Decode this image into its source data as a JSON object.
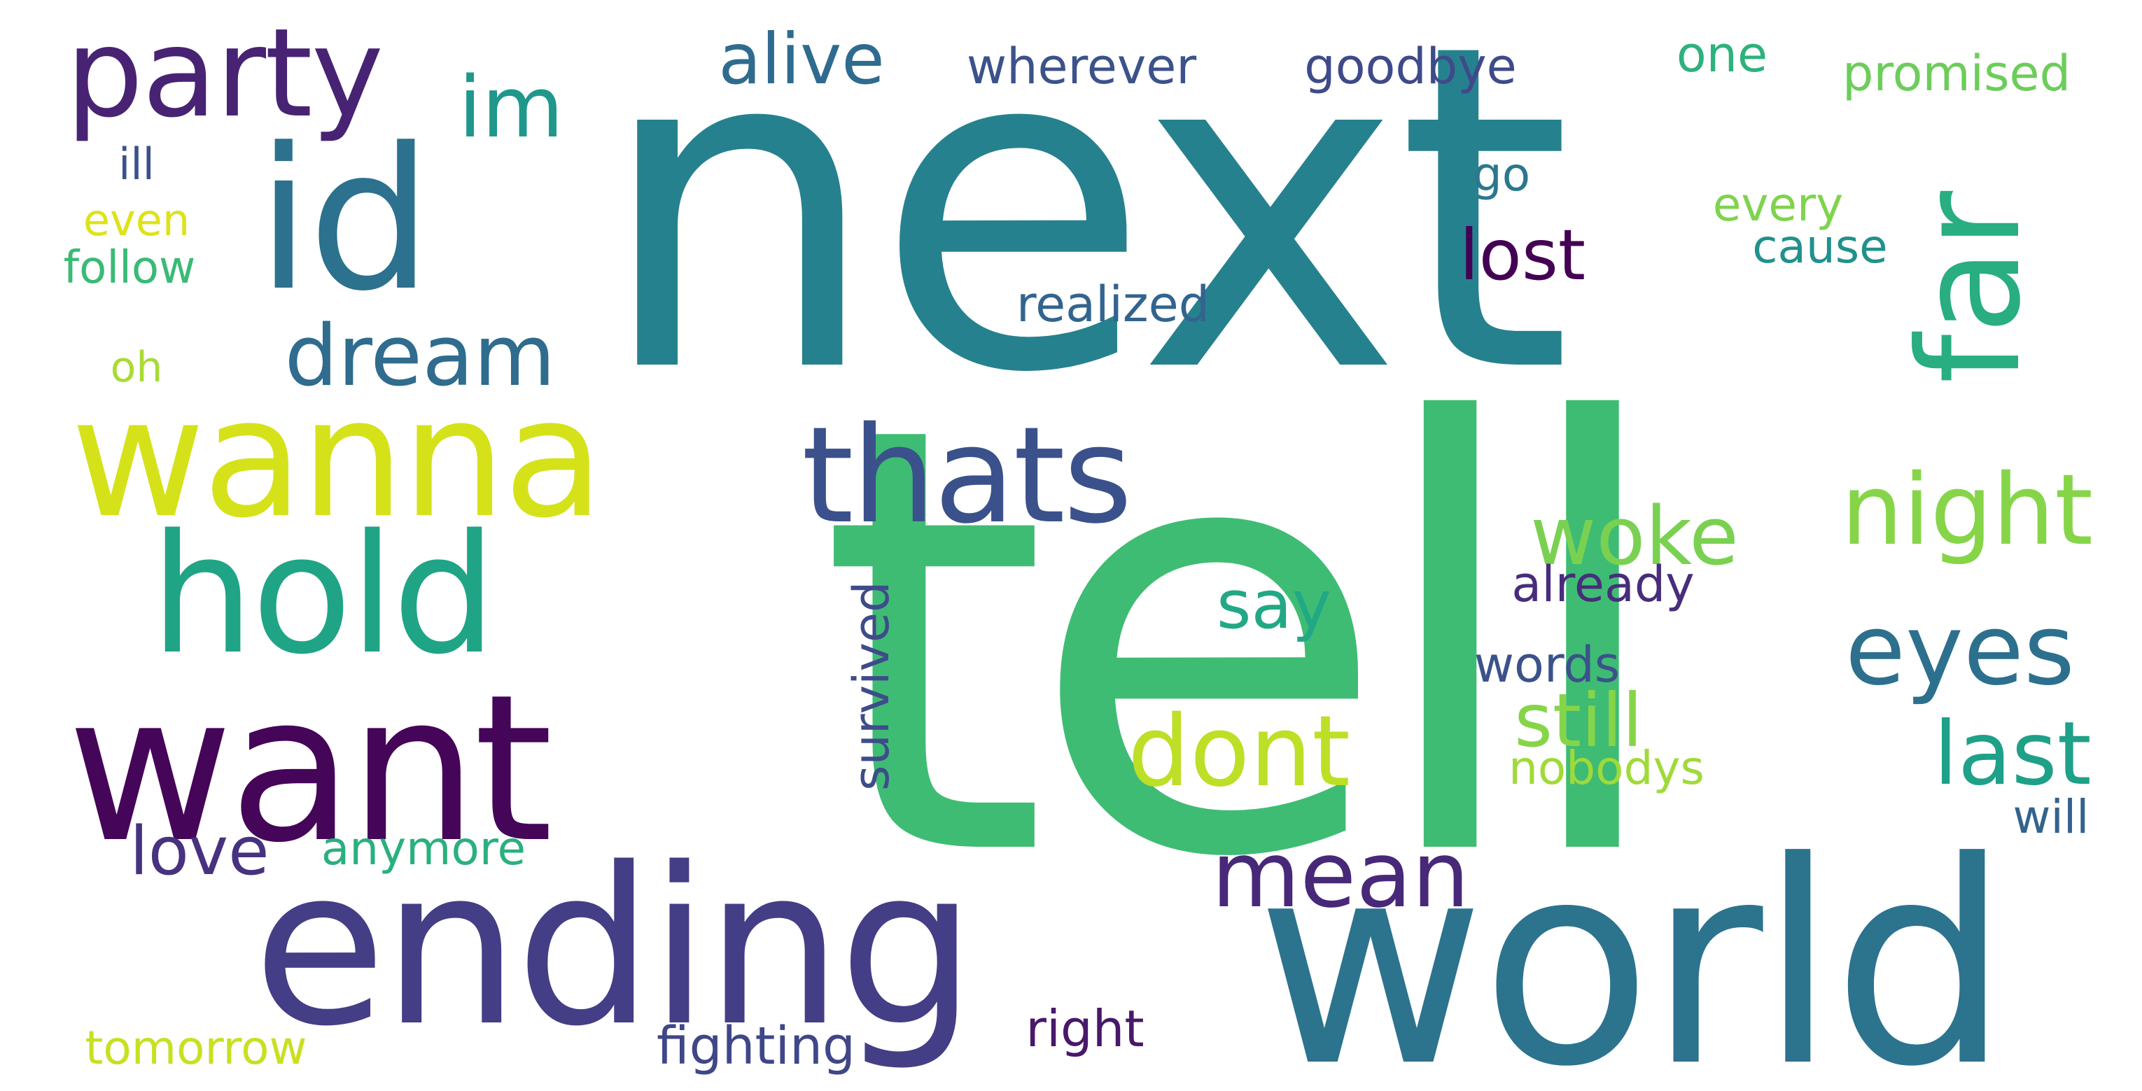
{
  "words": [
    {
      "text": "next",
      "color": "#26818e"
    },
    {
      "text": "tell",
      "color": "#3fbc73"
    },
    {
      "text": "world",
      "color": "#2c738e"
    },
    {
      "text": "ending",
      "color": "#433e85"
    },
    {
      "text": "want",
      "color": "#450559"
    },
    {
      "text": "wanna",
      "color": "#d5e21a"
    },
    {
      "text": "hold",
      "color": "#20a486"
    },
    {
      "text": "id",
      "color": "#2c718e"
    },
    {
      "text": "party",
      "color": "#482374"
    },
    {
      "text": "thats",
      "color": "#3b518b"
    },
    {
      "text": "far",
      "color": "#28ae80"
    },
    {
      "text": "dream",
      "color": "#2f6c8e"
    },
    {
      "text": "night",
      "color": "#86d549"
    },
    {
      "text": "eyes",
      "color": "#2d708e"
    },
    {
      "text": "woke",
      "color": "#7ad151"
    },
    {
      "text": "dont",
      "color": "#bddf26"
    },
    {
      "text": "mean",
      "color": "#482878"
    },
    {
      "text": "alive",
      "color": "#2f6b8e"
    },
    {
      "text": "im",
      "color": "#1f988b"
    },
    {
      "text": "last",
      "color": "#1fa088"
    },
    {
      "text": "still",
      "color": "#86d549"
    },
    {
      "text": "lost",
      "color": "#440154"
    },
    {
      "text": "love",
      "color": "#46327e"
    },
    {
      "text": "say",
      "color": "#22a884"
    },
    {
      "text": "survived",
      "color": "#3e4c8a"
    },
    {
      "text": "wherever",
      "color": "#3b528b"
    },
    {
      "text": "goodbye",
      "color": "#3e4a89"
    },
    {
      "text": "one",
      "color": "#2db27d"
    },
    {
      "text": "promised",
      "color": "#6ccd5a"
    },
    {
      "text": "realized",
      "color": "#32648e"
    },
    {
      "text": "already",
      "color": "#472d7b"
    },
    {
      "text": "words",
      "color": "#3b528b"
    },
    {
      "text": "nobodys",
      "color": "#a0da39"
    },
    {
      "text": "anymore",
      "color": "#2ab07f"
    },
    {
      "text": "tomorrow",
      "color": "#c8e020"
    },
    {
      "text": "fighting",
      "color": "#3f4788"
    },
    {
      "text": "right",
      "color": "#48186a"
    },
    {
      "text": "will",
      "color": "#33638d"
    },
    {
      "text": "go",
      "color": "#2a788e"
    },
    {
      "text": "every",
      "color": "#7fd34e"
    },
    {
      "text": "cause",
      "color": "#21918c"
    },
    {
      "text": "ill",
      "color": "#3b518b"
    },
    {
      "text": "even",
      "color": "#dde318"
    },
    {
      "text": "follow",
      "color": "#3aba76"
    },
    {
      "text": "oh",
      "color": "#a8db34"
    }
  ]
}
